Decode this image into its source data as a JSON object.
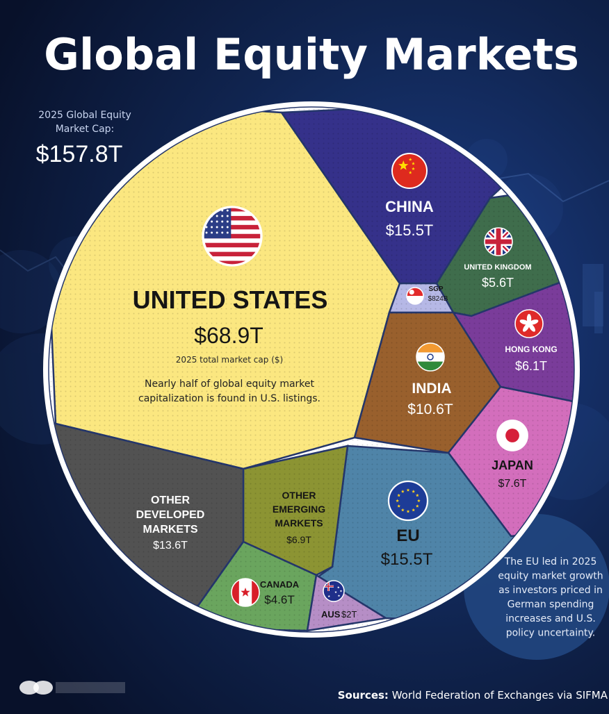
{
  "title": "Global Equity Markets",
  "total": {
    "label": "2025 Global Equity Market Cap:",
    "value": "$157.8T"
  },
  "chart_data": {
    "type": "voronoi-treemap",
    "title": "Global Equity Markets",
    "total_label": "2025 Global Equity Market Cap:",
    "total_value": 157.8,
    "unit": "$T",
    "segments": [
      {
        "id": "us",
        "name": "UNITED STATES",
        "value": 68.9,
        "value_label": "$68.9T",
        "sublabel": "2025 total market cap ($)",
        "note": "Nearly half of global equity market capitalization is found in U.S. listings.",
        "color": "#fbe780",
        "flag": "us"
      },
      {
        "id": "china",
        "name": "CHINA",
        "value": 15.5,
        "value_label": "$15.5T",
        "color": "#35318a",
        "flag": "china"
      },
      {
        "id": "uk",
        "name": "UNITED KINGDOM",
        "value": 5.6,
        "value_label": "$5.6T",
        "color": "#3f6d4c",
        "flag": "uk"
      },
      {
        "id": "sgp",
        "name": "SGP",
        "value": 0.824,
        "value_label": "$824B",
        "color": "#b6b8e6",
        "flag": "sgp"
      },
      {
        "id": "hk",
        "name": "HONG KONG",
        "value": 6.1,
        "value_label": "$6.1T",
        "color": "#7a3c9a",
        "flag": "hk"
      },
      {
        "id": "india",
        "name": "INDIA",
        "value": 10.6,
        "value_label": "$10.6T",
        "color": "#99602d",
        "flag": "india"
      },
      {
        "id": "japan",
        "name": "JAPAN",
        "value": 7.6,
        "value_label": "$7.6T",
        "color": "#d36ebc",
        "flag": "japan"
      },
      {
        "id": "eu",
        "name": "EU",
        "value": 15.5,
        "value_label": "$15.5T",
        "color": "#4f84a8",
        "flag": "eu"
      },
      {
        "id": "other_em",
        "name": "OTHER EMERGING MARKETS",
        "value": 6.9,
        "value_label": "$6.9T",
        "color": "#8c9433",
        "flag": ""
      },
      {
        "id": "other_dev",
        "name": "OTHER DEVELOPED MARKETS",
        "value": 13.6,
        "value_label": "$13.6T",
        "color": "#525252",
        "flag": ""
      },
      {
        "id": "canada",
        "name": "CANADA",
        "value": 4.6,
        "value_label": "$4.6T",
        "color": "#6aa55e",
        "flag": "canada"
      },
      {
        "id": "aus",
        "name": "AUS",
        "value": 2.0,
        "value_label": "$2T",
        "color": "#b68ec6",
        "flag": "aus"
      }
    ]
  },
  "eu_note": "The EU led in 2025 equity market growth as investors priced in German spending increases and U.S. policy uncertainty.",
  "source": {
    "label": "Sources:",
    "text": "World Federation of Exchanges via SIFMA"
  },
  "colors": {
    "background": "#0c1730",
    "ring": "#ffffff",
    "accent": "#1d5fbf",
    "cell_border": "#24366b"
  }
}
